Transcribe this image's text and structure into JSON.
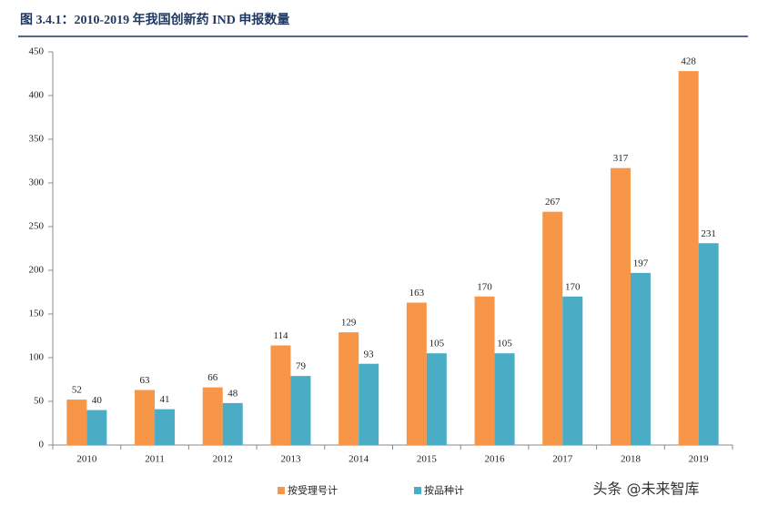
{
  "chart_data": {
    "type": "bar",
    "title": "图 3.4.1：2010-2019 年我国创新药 IND 申报数量",
    "categories": [
      "2010",
      "2011",
      "2012",
      "2013",
      "2014",
      "2015",
      "2016",
      "2017",
      "2018",
      "2019"
    ],
    "series": [
      {
        "name": "按受理号计",
        "color": "#f79646",
        "values": [
          52,
          63,
          66,
          114,
          129,
          163,
          170,
          267,
          317,
          428
        ]
      },
      {
        "name": "按品种计",
        "color": "#4bacc6",
        "values": [
          40,
          41,
          48,
          79,
          93,
          105,
          105,
          170,
          197,
          231
        ]
      }
    ],
    "ylim": [
      0,
      450
    ],
    "yticks": [
      0,
      50,
      100,
      150,
      200,
      250,
      300,
      350,
      400,
      450
    ],
    "grid": false,
    "legend": "bottom",
    "watermark": "头条 @未来智库"
  }
}
